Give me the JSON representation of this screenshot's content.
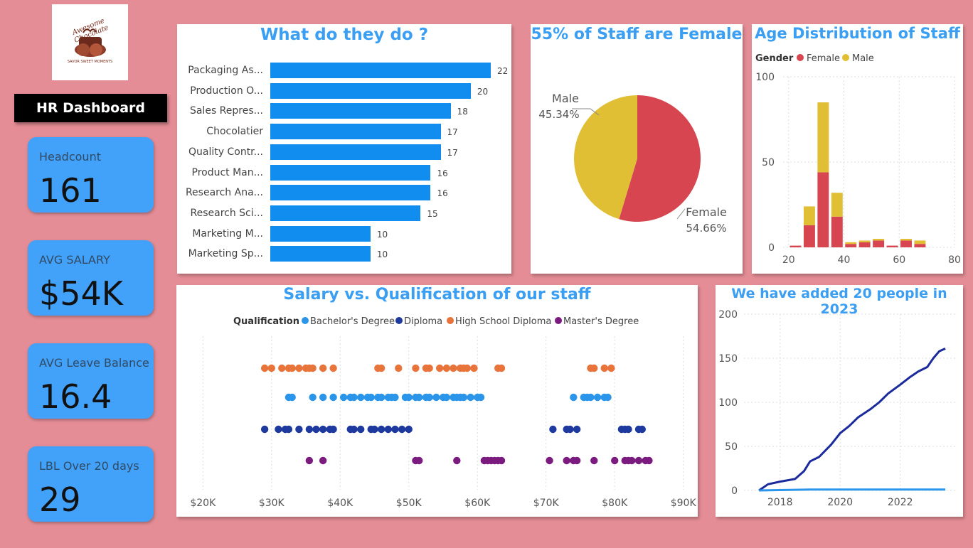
{
  "logo": {
    "text": "Awesome Chocolate",
    "tagline": "SAVOR SWEET MOMENTS"
  },
  "header": {
    "title": "HR Dashboard"
  },
  "kpis": [
    {
      "label": "Headcount",
      "value": "161"
    },
    {
      "label": "AVG SALARY",
      "value": "$54K"
    },
    {
      "label": "AVG Leave Balance",
      "value": "16.4"
    },
    {
      "label": "LBL Over 20 days",
      "value": "29"
    }
  ],
  "colors": {
    "female": "#d64550",
    "male": "#e0bf35",
    "bar": "#118df0",
    "bachelor": "#2b95ea",
    "diploma": "#1f3a9e",
    "highschool": "#e8743b",
    "master": "#7b1a7f",
    "line_total": "#1b2a9c",
    "line_new": "#2b95ea",
    "background": "#e58d96",
    "kpi": "#42a2f9"
  },
  "chart_data": [
    {
      "type": "bar",
      "title": "What do they do ?",
      "categories": [
        "Packaging As...",
        "Production O...",
        "Sales Repres...",
        "Chocolatier",
        "Quality Contr...",
        "Product Man...",
        "Research Ana...",
        "Research Sci...",
        "Marketing M...",
        "Marketing Sp..."
      ],
      "values": [
        22,
        20,
        18,
        17,
        17,
        16,
        16,
        15,
        10,
        10
      ],
      "xlim": [
        0,
        22
      ]
    },
    {
      "type": "pie",
      "title": "55% of Staff are Female",
      "slices": [
        {
          "name": "Female",
          "percent": 54.66,
          "label": "54.66%"
        },
        {
          "name": "Male",
          "percent": 45.34,
          "label": "45.34%"
        }
      ]
    },
    {
      "type": "bar",
      "stacked": true,
      "title": "Age Distribution of Staff",
      "legend_title": "Gender",
      "series_names": [
        "Female",
        "Male"
      ],
      "bins": [
        20,
        25,
        30,
        35,
        40,
        45,
        50,
        55,
        60,
        65
      ],
      "female": [
        1,
        13,
        44,
        18,
        2,
        3,
        4,
        1,
        4,
        2
      ],
      "male": [
        0,
        11,
        41,
        14,
        1,
        1,
        1,
        0,
        1,
        2
      ],
      "xlim": [
        18,
        80
      ],
      "ylim": [
        0,
        100
      ],
      "xticks": [
        "20",
        "40",
        "60",
        "80"
      ],
      "yticks": [
        "0",
        "50",
        "100"
      ]
    },
    {
      "type": "scatter",
      "title": "Salary vs. Qualification of our staff",
      "legend_title": "Qualification",
      "series": [
        {
          "name": "Bachelor's Degree",
          "values": [
            32.5,
            33,
            36,
            37.5,
            39,
            40.5,
            41.5,
            42,
            43,
            44,
            44.5,
            45.5,
            46,
            47,
            47.5,
            48,
            49.5,
            50,
            51,
            51.5,
            52.5,
            53,
            54,
            55,
            55.5,
            56.5,
            57,
            57.5,
            58,
            59,
            60,
            60.5,
            74,
            75.5,
            76,
            76.5,
            77.5,
            78.5,
            79
          ]
        },
        {
          "name": "Diploma",
          "values": [
            29,
            31,
            32,
            32.5,
            34,
            35.5,
            36.5,
            37.5,
            38.5,
            39,
            41.5,
            42,
            43,
            44.5,
            45,
            46,
            47,
            48,
            49,
            50,
            71,
            73,
            73.5,
            74.5,
            81,
            81.5,
            82,
            83.5,
            84
          ]
        },
        {
          "name": "High School Diploma",
          "values": [
            29,
            30,
            31.5,
            32.5,
            33,
            34,
            35,
            35.5,
            36,
            37.5,
            39,
            45.5,
            46,
            48.5,
            51,
            52.5,
            53,
            54.5,
            55.5,
            56.5,
            57.5,
            58,
            58.5,
            59.5,
            63,
            63.5,
            76.5,
            77,
            78.5,
            79.5
          ]
        },
        {
          "name": "Master's Degree",
          "values": [
            35.5,
            37.5,
            51,
            51.5,
            57,
            61,
            61.5,
            62,
            62.5,
            63,
            63.5,
            70.5,
            73,
            74,
            74.5,
            77,
            80,
            81.5,
            82,
            82.5,
            83.5,
            84.5,
            85
          ]
        }
      ],
      "xlim": [
        18,
        92
      ],
      "xticks": [
        "$20K",
        "$30K",
        "$40K",
        "$50K",
        "$60K",
        "$70K",
        "$80K",
        "$90K"
      ]
    },
    {
      "type": "line",
      "title": "We have added 20 people in 2023",
      "series": [
        {
          "x": [
            2017.3,
            2017.6,
            2018.0,
            2018.5,
            2018.8,
            2019.0,
            2019.3,
            2019.7,
            2020.0,
            2020.3,
            2020.6,
            2021.0,
            2021.3,
            2021.6,
            2022.0,
            2022.3,
            2022.6,
            2022.9,
            2023.1,
            2023.3,
            2023.5
          ],
          "y": [
            0,
            7,
            10,
            13,
            22,
            33,
            38,
            52,
            65,
            73,
            83,
            92,
            100,
            110,
            120,
            128,
            135,
            140,
            150,
            158,
            161
          ]
        },
        {
          "x": [
            2017.3,
            2019.0,
            2021.5,
            2023.5
          ],
          "y": [
            0,
            1,
            1,
            1
          ]
        }
      ],
      "xlim": [
        2016.8,
        2023.9
      ],
      "ylim": [
        0,
        200
      ],
      "xticks": [
        "2018",
        "2020",
        "2022"
      ],
      "yticks": [
        "0",
        "50",
        "100",
        "150",
        "200"
      ]
    }
  ]
}
